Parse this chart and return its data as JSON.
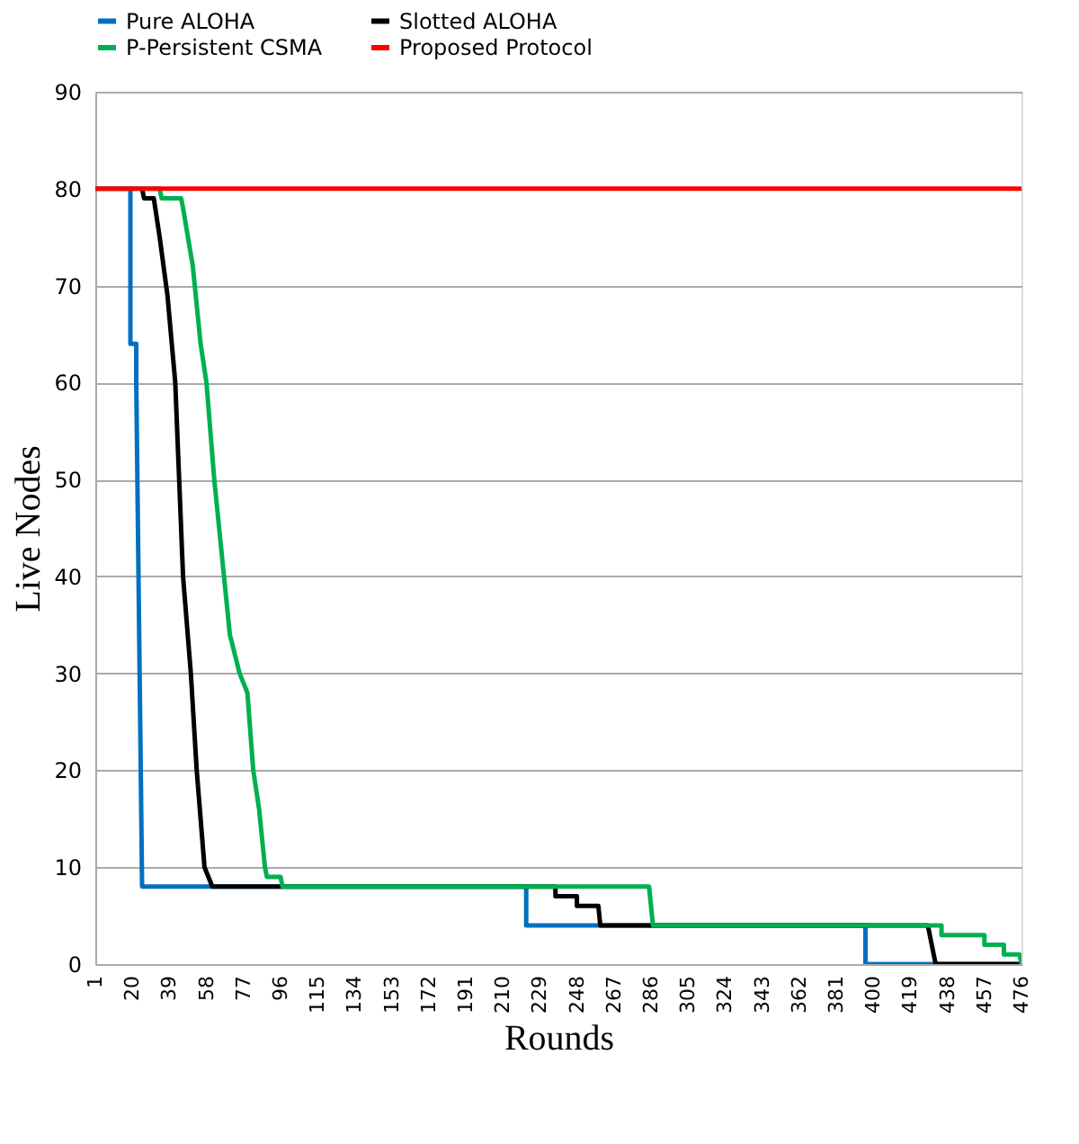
{
  "chart_data": {
    "type": "line",
    "xlabel": "Rounds",
    "ylabel": "Live Nodes",
    "xlim": [
      1,
      476
    ],
    "xticks": [
      1,
      20,
      39,
      58,
      77,
      96,
      115,
      134,
      153,
      172,
      191,
      210,
      229,
      248,
      267,
      286,
      305,
      324,
      343,
      362,
      381,
      400,
      419,
      438,
      457,
      476
    ],
    "ylim": [
      0,
      90
    ],
    "yticks": [
      0,
      10,
      20,
      30,
      40,
      50,
      60,
      70,
      80,
      90
    ],
    "grid": "y",
    "legend": "top",
    "marker": "none",
    "line_style": "solid",
    "series": [
      {
        "name": "Pure ALOHA",
        "color": "#0070c0",
        "x": [
          1,
          19,
          19,
          22,
          22,
          25,
          222,
          222,
          396,
          396,
          476
        ],
        "values": [
          80,
          80,
          64,
          64,
          60,
          8,
          8,
          4,
          4,
          0,
          0
        ]
      },
      {
        "name": "Slotted ALOHA",
        "color": "#000000",
        "x": [
          25,
          26,
          31,
          34,
          38,
          42,
          44,
          46,
          50,
          53,
          57,
          61,
          237,
          237,
          248,
          248,
          259,
          260,
          428,
          432,
          476
        ],
        "values": [
          80,
          79,
          79,
          75,
          69,
          60,
          50,
          40,
          30,
          20,
          10,
          8,
          8,
          7,
          7,
          6,
          6,
          4,
          4,
          0,
          0
        ]
      },
      {
        "name": "P-Persistent CSMA",
        "color": "#00b050",
        "x": [
          1,
          34,
          35,
          45,
          46,
          51,
          52,
          55,
          58,
          62,
          67,
          70,
          75,
          79,
          82,
          85,
          88,
          89,
          96,
          97,
          110,
          285,
          287,
          435,
          435,
          457,
          457,
          467,
          467,
          475,
          476
        ],
        "values": [
          80,
          80,
          79,
          79,
          78,
          72,
          70,
          64,
          60,
          50,
          40,
          34,
          30,
          28,
          20,
          16,
          10,
          9,
          9,
          8,
          8,
          8,
          4,
          4,
          3,
          3,
          2,
          2,
          1,
          1,
          0
        ]
      },
      {
        "name": "Proposed Protocol",
        "color": "#ff0000",
        "x": [
          1,
          476
        ],
        "values": [
          80,
          80
        ]
      }
    ]
  }
}
